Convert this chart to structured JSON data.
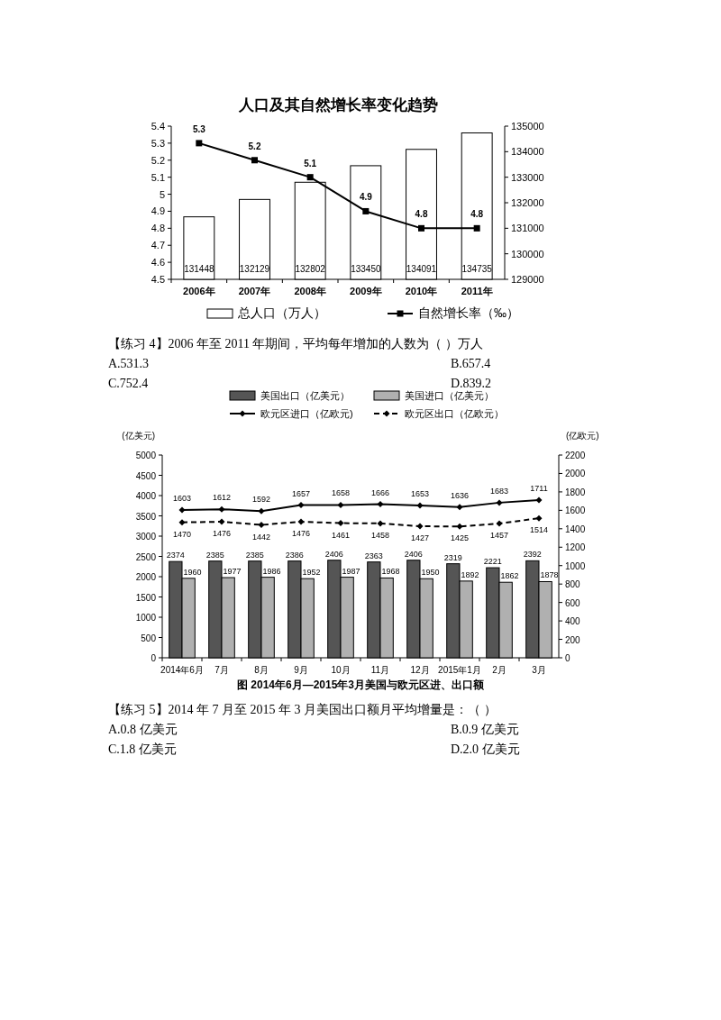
{
  "chart_data": [
    {
      "type": "bar",
      "title": "人口及其自然增长率变化趋势",
      "categories": [
        "2006年",
        "2007年",
        "2008年",
        "2009年",
        "2010年",
        "2011年"
      ],
      "series": [
        {
          "name": "总人口（万人）",
          "axis": "y2",
          "color": "#ffffff",
          "values": [
            131448,
            132129,
            132802,
            133450,
            134091,
            134735
          ]
        },
        {
          "name": "自然增长率（‰）",
          "type": "line",
          "color": "#000000",
          "values": [
            5.3,
            5.2,
            5.1,
            4.9,
            4.8,
            4.8
          ]
        }
      ],
      "ylim": [
        4.5,
        5.4
      ],
      "yticks": [
        4.5,
        4.6,
        4.7,
        4.8,
        4.9,
        5,
        5.1,
        5.2,
        5.3,
        5.4
      ],
      "y2lim": [
        129000,
        135000
      ],
      "y2ticks": [
        129000,
        130000,
        131000,
        132000,
        133000,
        134000,
        135000
      ],
      "data_labels": true,
      "legend": "bottom",
      "marker": "square",
      "annotations": [
        "【练习 4】2006 年至 2011 年期间，平均每年增加的人数为（ ）万人",
        "A.531.3",
        "B.657.4",
        "C.752.4",
        "D.839.2"
      ]
    },
    {
      "type": "bar",
      "title": "图 2014年6月—2015年3月美国与欧元区进、出口额",
      "ylabel": "(亿美元)",
      "y2label": "(亿欧元)",
      "categories": [
        "2014年6月",
        "7月",
        "8月",
        "9月",
        "10月",
        "11月",
        "12月",
        "2015年1月",
        "2月",
        "3月"
      ],
      "series": [
        {
          "name": "美国出口（亿美元）",
          "color": "#555555",
          "values": [
            2374,
            2385,
            2385,
            2386,
            2406,
            2363,
            2406,
            2319,
            2221,
            2392
          ]
        },
        {
          "name": "美国进口（亿美元）",
          "color": "#b0b0b0",
          "values": [
            1960,
            1977,
            1986,
            1952,
            1987,
            1968,
            1950,
            1892,
            1862,
            1878
          ]
        },
        {
          "name": "欧元区进口（亿欧元)",
          "type": "line",
          "axis": "y2",
          "color": "#000000",
          "values": [
            1603,
            1612,
            1592,
            1657,
            1658,
            1666,
            1653,
            1636,
            1683,
            1711
          ]
        },
        {
          "name": "欧元区出口（亿欧元）",
          "type": "line",
          "axis": "y2",
          "color": "#000000",
          "line_style": "dashed",
          "values": [
            1470,
            1476,
            1442,
            1476,
            1461,
            1458,
            1427,
            1425,
            1457,
            1514
          ]
        }
      ],
      "ylim": [
        0,
        5000
      ],
      "yticks": [
        0,
        500,
        1000,
        1500,
        2000,
        2500,
        3000,
        3500,
        4000,
        4500,
        5000
      ],
      "y2lim": [
        0,
        2200
      ],
      "y2ticks": [
        0,
        200,
        400,
        600,
        800,
        1000,
        1200,
        1400,
        1600,
        1800,
        2000,
        2200
      ],
      "data_labels": true,
      "legend": "top",
      "marker": "diamond",
      "annotations": [
        "【练习 5】2014 年 7 月至 2015 年 3 月美国出口额月平均增量是：（     ）",
        "A.0.8 亿美元",
        "B.0.9 亿美元",
        "C.1.8 亿美元",
        "D.2.0 亿美元"
      ]
    }
  ]
}
